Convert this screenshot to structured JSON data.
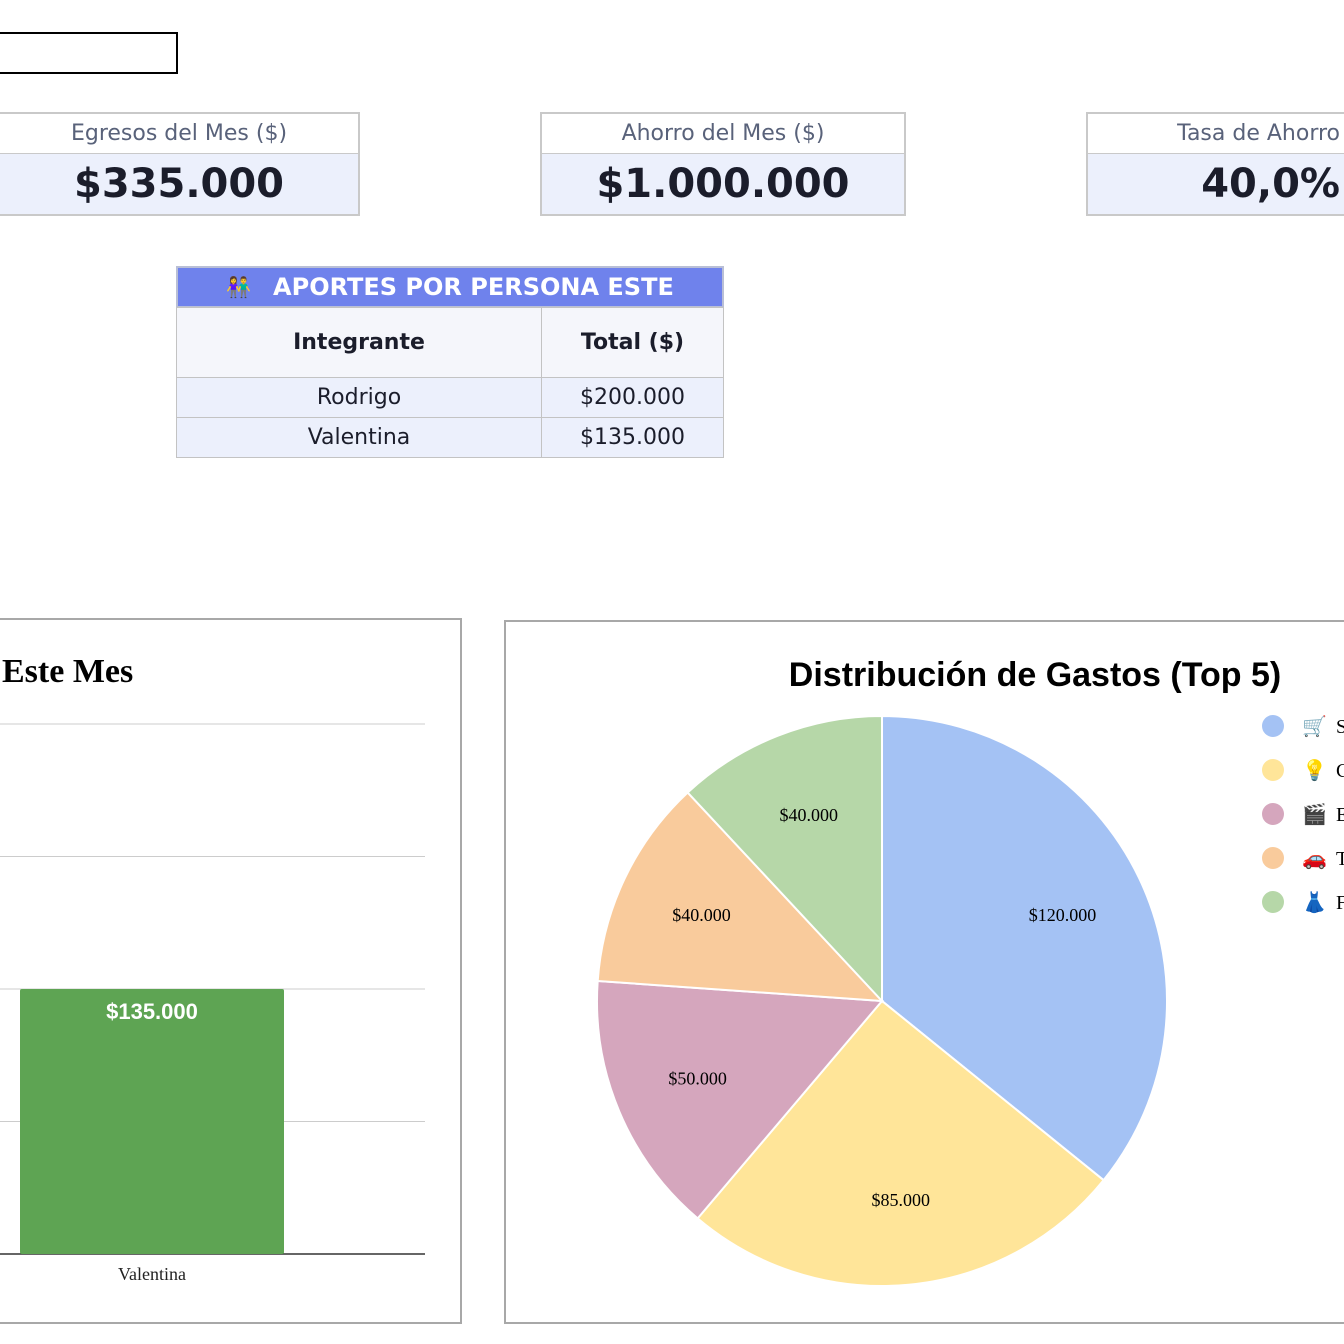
{
  "kpis": [
    {
      "label": "Egresos del Mes ($)",
      "value": "$335.000"
    },
    {
      "label": "Ahorro del Mes ($)",
      "value": "$1.000.000"
    },
    {
      "label": "Tasa de Ahorro",
      "value": "40,0%"
    }
  ],
  "aportes": {
    "title_icon": "👫",
    "title": "APORTES POR PERSONA ESTE",
    "columns": [
      "Integrante",
      "Total ($)"
    ],
    "rows": [
      {
        "name": "Rodrigo",
        "total": "$200.000"
      },
      {
        "name": "Valentina",
        "total": "$135.000"
      }
    ]
  },
  "chart_data": [
    {
      "type": "bar",
      "title": "Este Mes",
      "categories": [
        "Valentina"
      ],
      "values": [
        135000
      ],
      "value_labels": [
        "$135.000"
      ],
      "ylim": [
        0,
        270000
      ],
      "gridlines": 4,
      "color": "#5ea453"
    },
    {
      "type": "pie",
      "title": "Distribución de Gastos (Top 5)",
      "values": [
        120000,
        85000,
        50000,
        40000,
        40000
      ],
      "labels": [
        "$120.000",
        "$85.000",
        "$50.000",
        "$40.000",
        "$40.000"
      ],
      "colors": [
        "#a4c2f4",
        "#ffe599",
        "#d5a6bd",
        "#f9cb9c",
        "#b6d7a8"
      ],
      "legend": [
        {
          "icon": "🛒",
          "text": "S"
        },
        {
          "icon": "💡",
          "text": "C"
        },
        {
          "icon": "🎬",
          "text": "E"
        },
        {
          "icon": "🚗",
          "text": "T"
        },
        {
          "icon": "👗",
          "text": "F"
        }
      ],
      "legend_position": "right"
    }
  ]
}
